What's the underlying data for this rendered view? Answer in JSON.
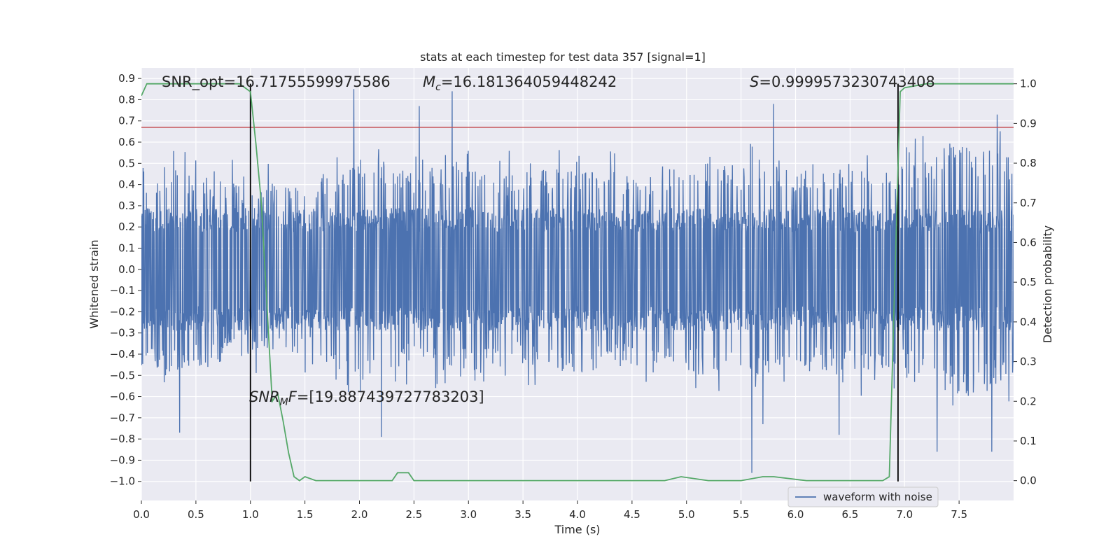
{
  "chart_data": {
    "type": "line",
    "title": "stats at each timestep for test data 357 [signal=1]",
    "xlabel": "Time (s)",
    "ylabel": "Whitened strain",
    "y2label": "Detection probability",
    "xlim": [
      0,
      8
    ],
    "ylim": [
      -1.09,
      0.95
    ],
    "y2lim": [
      -0.05,
      1.04
    ],
    "grid": true,
    "legend": {
      "placement": "lower-right",
      "entries": [
        "waveform with noise"
      ]
    },
    "x_ticks": [
      0.0,
      0.5,
      1.0,
      1.5,
      2.0,
      2.5,
      3.0,
      3.5,
      4.0,
      4.5,
      5.0,
      5.5,
      6.0,
      6.5,
      7.0,
      7.5
    ],
    "x_tick_labels": [
      "0.0",
      "0.5",
      "1.0",
      "1.5",
      "2.0",
      "2.5",
      "3.0",
      "3.5",
      "4.0",
      "4.5",
      "5.0",
      "5.5",
      "6.0",
      "6.5",
      "7.0",
      "7.5"
    ],
    "y_ticks": [
      0.9,
      0.8,
      0.7,
      0.6,
      0.5,
      0.4,
      0.3,
      0.2,
      0.1,
      0.0,
      -0.1,
      -0.2,
      -0.3,
      -0.4,
      -0.5,
      -0.6,
      -0.7,
      -0.8,
      -0.9,
      -1.0
    ],
    "y_tick_labels": [
      "0.9",
      "0.8",
      "0.7",
      "0.6",
      "0.5",
      "0.4",
      "0.3",
      "0.2",
      "0.1",
      "0.0",
      "−0.1",
      "−0.2",
      "−0.3",
      "−0.4",
      "−0.5",
      "−0.6",
      "−0.7",
      "−0.8",
      "−0.9",
      "−1.0"
    ],
    "y2_ticks": [
      1.0,
      0.9,
      0.8,
      0.7,
      0.6,
      0.5,
      0.4,
      0.3,
      0.2,
      0.1,
      0.0
    ],
    "y2_tick_labels": [
      "1.0",
      "0.9",
      "0.8",
      "0.7",
      "0.6",
      "0.5",
      "0.4",
      "0.3",
      "0.2",
      "0.1",
      "0.0"
    ],
    "annotations": {
      "snr_opt": "SNR_opt=16.71755599975586",
      "mc_symbol": "M",
      "mc_sub": "c",
      "mc_value": "=16.181364059448242",
      "s_symbol": "S",
      "s_value": "=0.9999573230743408",
      "snr_mf_symbol": "SNR",
      "snr_mf_sub": "M",
      "snr_mf_f": "F",
      "snr_mf_value": "=[19.887439727783203]"
    },
    "vertical_lines_x": [
      1.0,
      6.94
    ],
    "threshold_line_y": 0.67,
    "waveform": {
      "name": "waveform with noise",
      "color": "#4c72b0",
      "x_range": [
        0,
        8
      ],
      "core_amplitude": 0.29,
      "spike_envelope": [
        [
          0.0,
          0.48
        ],
        [
          0.5,
          0.47
        ],
        [
          1.0,
          0.4
        ],
        [
          1.5,
          0.4
        ],
        [
          2.0,
          0.55
        ],
        [
          2.5,
          0.45
        ],
        [
          3.0,
          0.5
        ],
        [
          3.5,
          0.45
        ],
        [
          4.0,
          0.5
        ],
        [
          4.5,
          0.45
        ],
        [
          5.0,
          0.5
        ],
        [
          5.5,
          0.5
        ],
        [
          6.0,
          0.48
        ],
        [
          6.5,
          0.5
        ],
        [
          7.0,
          0.5
        ],
        [
          7.5,
          0.6
        ],
        [
          8.0,
          0.55
        ]
      ],
      "extreme_peaks": [
        [
          1.95,
          0.85
        ],
        [
          2.85,
          0.84
        ],
        [
          2.55,
          0.77
        ],
        [
          5.8,
          0.78
        ],
        [
          7.85,
          0.73
        ],
        [
          5.6,
          -0.96
        ],
        [
          0.35,
          -0.77
        ],
        [
          2.2,
          -0.79
        ],
        [
          7.3,
          -0.86
        ],
        [
          7.8,
          -0.86
        ],
        [
          5.7,
          -0.73
        ],
        [
          6.4,
          -0.78
        ]
      ]
    },
    "probability": {
      "color": "#55a868",
      "x": [
        0.0,
        0.05,
        0.3,
        0.6,
        0.9,
        0.95,
        1.0,
        1.05,
        1.1,
        1.15,
        1.2,
        1.25,
        1.3,
        1.35,
        1.4,
        1.45,
        1.5,
        1.6,
        1.7,
        1.8,
        1.9,
        2.0,
        2.1,
        2.2,
        2.3,
        2.35,
        2.4,
        2.45,
        2.5,
        2.6,
        2.8,
        3.0,
        3.3,
        3.5,
        3.6,
        4.0,
        4.2,
        4.5,
        4.8,
        4.95,
        5.2,
        5.5,
        5.7,
        5.8,
        6.1,
        6.3,
        6.5,
        6.7,
        6.8,
        6.86,
        6.91,
        6.96,
        7.0,
        7.2,
        8.0
      ],
      "y": [
        0.97,
        1.0,
        1.0,
        1.0,
        1.0,
        0.99,
        0.98,
        0.85,
        0.7,
        0.45,
        0.2,
        0.22,
        0.15,
        0.07,
        0.01,
        0.0,
        0.01,
        0.0,
        0.0,
        0.0,
        0.0,
        0.0,
        0.0,
        0.0,
        0.0,
        0.02,
        0.02,
        0.02,
        0.0,
        0.0,
        0.0,
        0.0,
        0.0,
        0.0,
        0.0,
        0.0,
        0.0,
        0.0,
        0.0,
        0.01,
        0.0,
        0.0,
        0.01,
        0.01,
        0.0,
        0.0,
        0.0,
        0.0,
        0.0,
        0.01,
        0.5,
        0.98,
        0.99,
        1.0,
        1.0
      ]
    }
  }
}
